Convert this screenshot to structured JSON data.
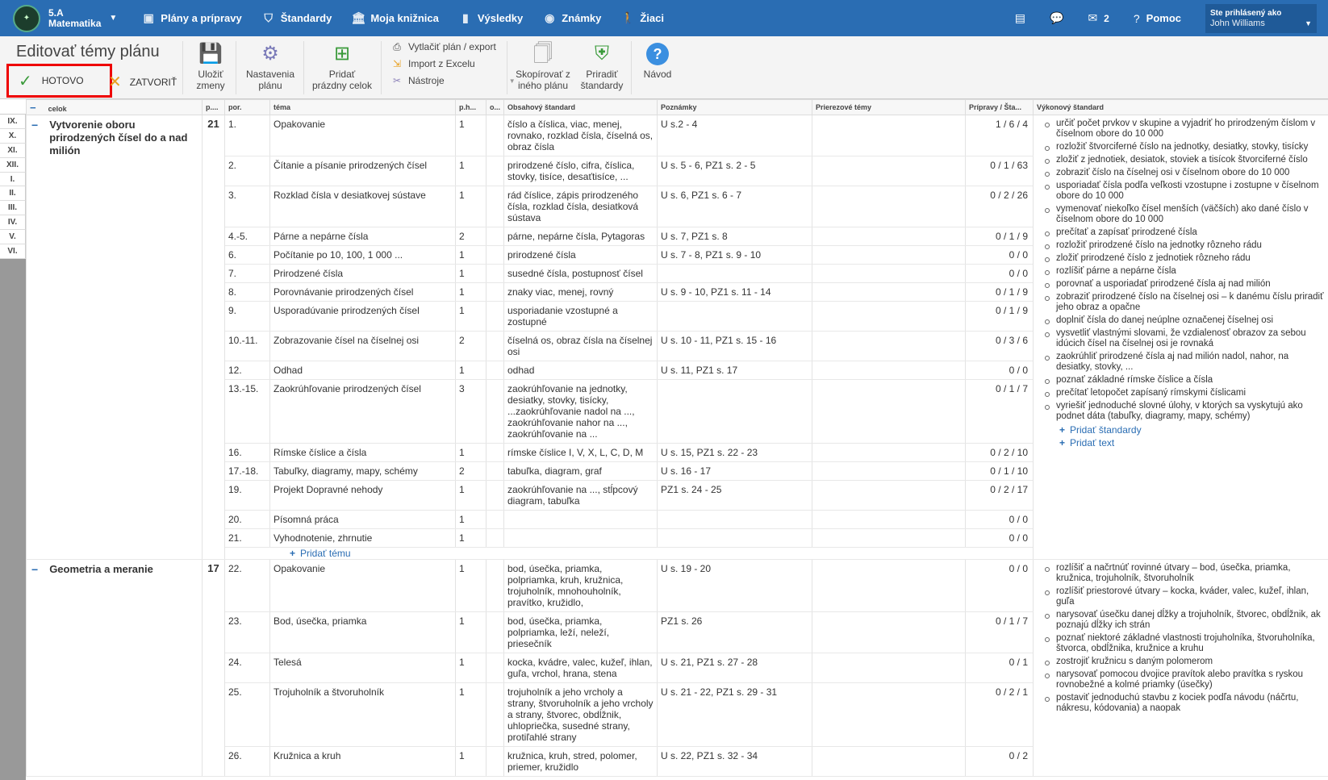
{
  "topnav": {
    "class_line1": "5.A",
    "class_line2": "Matematika",
    "items": [
      {
        "label": "Plány a prípravy",
        "icon": "briefcase-icon"
      },
      {
        "label": "Štandardy",
        "icon": "shield-icon"
      },
      {
        "label": "Moja knižnica",
        "icon": "library-icon"
      },
      {
        "label": "Výsledky",
        "icon": "bar-chart-icon"
      },
      {
        "label": "Známky",
        "icon": "grades-icon"
      },
      {
        "label": "Žiaci",
        "icon": "students-icon"
      }
    ],
    "mail_count": "2",
    "help_label": "Pomoc",
    "user_caption": "Ste prihlásený ako",
    "user_name": "John Williams"
  },
  "toolbar": {
    "title": "Editovať témy plánu",
    "done_label": "HOTOVO",
    "close_label": "ZATVORIŤ",
    "save_l1": "Uložiť",
    "save_l2": "zmeny",
    "settings_l1": "Nastavenia",
    "settings_l2": "plánu",
    "add_empty_l1": "Pridať",
    "add_empty_l2": "prázdny celok",
    "print_label": "Vytlačiť plán / export",
    "import_label": "Import z Excelu",
    "tools_label": "Nástroje",
    "copy_l1": "Skopírovať z",
    "copy_l2": "iného plánu",
    "assign_l1": "Priradiť",
    "assign_l2": "štandardy",
    "guide_label": "Návod"
  },
  "months": [
    "IX.",
    "X.",
    "XI.",
    "XII.",
    "I.",
    "II.",
    "III.",
    "IV.",
    "V.",
    "VI."
  ],
  "columns": {
    "celok": "celok",
    "p": "p....",
    "por": "por.",
    "tema": "téma",
    "ph": "p.h...",
    "o": "o...",
    "obsah": "Obsahový štandard",
    "pozn": "Poznámky",
    "prier": "Prierezové témy",
    "prip": "Prípravy / Šta...",
    "vyk": "Výkonový štandard"
  },
  "groups": [
    {
      "title": "Vytvorenie oboru prirodzených čísel do a nad milión",
      "hours": "21",
      "rows": [
        {
          "por": "1.",
          "tema": "Opakovanie",
          "ph": "1",
          "obsah": "číslo a číslica, viac, menej, rovnako, rozklad čísla, číselná os, obraz čísla",
          "pozn": "U s.2 - 4",
          "prip": "1 / 6 / 4"
        },
        {
          "por": "2.",
          "tema": "Čítanie a písanie prirodzených čísel",
          "ph": "1",
          "obsah": "prirodzené číslo, cifra, číslica, stovky, tisíce, desaťtisíce, ...",
          "pozn": "U s. 5 - 6, PZ1 s. 2 - 5",
          "prip": "0 / 1 / 63"
        },
        {
          "por": "3.",
          "tema": "Rozklad čísla v desiatkovej sústave",
          "ph": "1",
          "obsah": "rád číslice, zápis prirodzeného čísla, rozklad čísla, desiatková sústava",
          "pozn": "U s. 6, PZ1 s. 6 - 7",
          "prip": "0 / 2 / 26"
        },
        {
          "por": "4.-5.",
          "tema": "Párne a nepárne čísla",
          "ph": "2",
          "obsah": "párne, nepárne čísla, Pytagoras",
          "pozn": "U s. 7, PZ1 s. 8",
          "prip": "0 / 1 / 9"
        },
        {
          "por": "6.",
          "tema": "Počítanie po 10, 100, 1 000 ...",
          "ph": "1",
          "obsah": "prirodzené čísla",
          "pozn": "U s. 7 - 8, PZ1 s. 9 - 10",
          "prip": "0 / 0"
        },
        {
          "por": "7.",
          "tema": "Prirodzené čísla",
          "ph": "1",
          "obsah": "susedné čísla, postupnosť čísel",
          "pozn": "",
          "prip": "0 / 0"
        },
        {
          "por": "8.",
          "tema": "Porovnávanie prirodzených čísel",
          "ph": "1",
          "obsah": "znaky viac, menej, rovný",
          "pozn": "U s. 9 - 10, PZ1 s. 11 - 14",
          "prip": "0 / 1 / 9"
        },
        {
          "por": "9.",
          "tema": "Usporadúvanie prirodzených čísel",
          "ph": "1",
          "obsah": "usporiadanie vzostupné a zostupné",
          "pozn": "",
          "prip": "0 / 1 / 9"
        },
        {
          "por": "10.-11.",
          "tema": "Zobrazovanie čísel na číselnej osi",
          "ph": "2",
          "obsah": "číselná os, obraz čísla na číselnej osi",
          "pozn": "U s. 10 - 11, PZ1 s. 15 - 16",
          "prip": "0 / 3 / 6"
        },
        {
          "por": "12.",
          "tema": "Odhad",
          "ph": "1",
          "obsah": "odhad",
          "pozn": "U s. 11, PZ1 s. 17",
          "prip": "0 / 0"
        },
        {
          "por": "13.-15.",
          "tema": "Zaokrúhľovanie prirodzených čísel",
          "ph": "3",
          "obsah": "zaokrúhľovanie na jednotky, desiatky, stovky, tisícky, ...zaokrúhľovanie nadol na ..., zaokrúhľovanie nahor na ..., zaokrúhľovanie na ...",
          "pozn": "",
          "prip": "0 / 1 / 7"
        },
        {
          "por": "16.",
          "tema": "Rímske číslice a čísla",
          "ph": "1",
          "obsah": "rímske číslice I, V, X, L, C, D, M",
          "pozn": "U s. 15, PZ1 s. 22 - 23",
          "prip": "0 / 2 / 10"
        },
        {
          "por": "17.-18.",
          "tema": "Tabuľky, diagramy, mapy, schémy",
          "ph": "2",
          "obsah": "tabuľka, diagram, graf",
          "pozn": "U s. 16 - 17",
          "prip": "0 / 1 / 10"
        },
        {
          "por": "19.",
          "tema": "Projekt Dopravné nehody",
          "ph": "1",
          "obsah": "zaokrúhľovanie na ..., stĺpcový diagram, tabuľka",
          "pozn": "PZ1 s. 24 - 25",
          "prip": "0 / 2 / 17"
        },
        {
          "por": "20.",
          "tema": "Písomná práca",
          "ph": "1",
          "obsah": "",
          "pozn": "",
          "prip": "0 / 0"
        },
        {
          "por": "21.",
          "tema": "Vyhodnotenie, zhrnutie",
          "ph": "1",
          "obsah": "",
          "pozn": "",
          "prip": "0 / 0"
        }
      ],
      "add_topic": "Pridať tému",
      "vykonovy": [
        "určiť počet prvkov v skupine a vyjadriť ho prirodzeným číslom v číselnom obore do 10 000",
        "rozložiť štvorciferné číslo na jednotky, desiatky, stovky, tisícky",
        "zložiť z jednotiek, desiatok, stoviek a tisícok štvorciferné číslo",
        "zobraziť číslo na číselnej osi v číselnom obore do 10 000",
        "usporiadať čísla podľa veľkosti vzostupne i zostupne v číselnom obore do 10 000",
        "vymenovať niekoľko čísel menších (väčších) ako dané číslo v číselnom obore do 10 000",
        "prečítať a zapísať prirodzené čísla",
        "rozložiť prirodzené číslo na jednotky rôzneho rádu",
        "zložiť prirodzené číslo z jednotiek rôzneho rádu",
        "rozlíšiť párne a nepárne čísla",
        "porovnať a usporiadať prirodzené čísla aj nad milión",
        "zobraziť prirodzené číslo na číselnej osi – k danému číslu priradiť jeho obraz a opačne",
        "doplniť čísla do danej neúplne označenej číselnej osi",
        "vysvetliť vlastnými slovami, že vzdialenosť obrazov za sebou idúcich čísel na číselnej osi je rovnaká",
        "zaokrúhliť prirodzené čísla aj nad milión nadol, nahor, na desiatky, stovky, ...",
        "poznať základné rímske číslice a čísla",
        "prečítať letopočet zapísaný rímskymi číslicami",
        "vyriešiť jednoduché slovné úlohy, v ktorých sa vyskytujú ako podnet dáta (tabuľky, diagramy, mapy, schémy)"
      ],
      "add_standard": "Pridať štandardy",
      "add_text": "Pridať text"
    },
    {
      "title": "Geometria a meranie",
      "hours": "17",
      "rows": [
        {
          "por": "22.",
          "tema": "Opakovanie",
          "ph": "1",
          "obsah": "bod, úsečka, priamka, polpriamka, kruh, kružnica, trojuholník, mnohouholník, pravítko, kružidlo,",
          "pozn": "U s. 19 - 20",
          "prip": "0 / 0"
        },
        {
          "por": "23.",
          "tema": "Bod, úsečka, priamka",
          "ph": "1",
          "obsah": "bod, úsečka, priamka, polpriamka, leží, neleží, priesečník",
          "pozn": "PZ1 s. 26",
          "prip": "0 / 1 / 7"
        },
        {
          "por": "24.",
          "tema": "Telesá",
          "ph": "1",
          "obsah": "kocka, kvádre, valec, kužeľ, ihlan, guľa, vrchol, hrana, stena",
          "pozn": "U s. 21, PZ1 s. 27 - 28",
          "prip": "0 / 1"
        },
        {
          "por": "25.",
          "tema": "Trojuholník a štvoruholník",
          "ph": "1",
          "obsah": "trojuholník a jeho vrcholy a strany, štvoruholník a jeho vrcholy a strany, štvorec, obdĺžnik, uhlopriečka, susedné strany, protiľahlé strany",
          "pozn": "U s. 21 - 22, PZ1 s. 29 - 31",
          "prip": "0 / 2 / 1"
        },
        {
          "por": "26.",
          "tema": "Kružnica a kruh",
          "ph": "1",
          "obsah": "kružnica, kruh, stred, polomer, priemer, kružidlo",
          "pozn": "U s. 22, PZ1 s. 32 - 34",
          "prip": "0 / 2"
        }
      ],
      "vykonovy": [
        "rozlíšiť a načrtnúť rovinné útvary – bod, úsečka, priamka, kružnica, trojuholník, štvoruholník",
        "rozlíšiť priestorové útvary – kocka, kváder, valec, kužeľ, ihlan, guľa",
        "narysovať úsečku danej dĺžky a trojuholník, štvorec, obdĺžnik, ak poznajú dĺžky ich strán",
        "poznať niektoré základné vlastnosti trojuholníka, štvoruholníka, štvorca, obdĺžnika, kružnice a kruhu",
        "zostrojiť kružnicu s daným polomerom",
        "narysovať pomocou dvojice pravítok alebo pravítka s ryskou rovnobežné a kolmé priamky (úsečky)",
        "postaviť jednoduchú stavbu z kociek podľa návodu (náčrtu, nákresu, kódovania) a naopak"
      ]
    }
  ]
}
